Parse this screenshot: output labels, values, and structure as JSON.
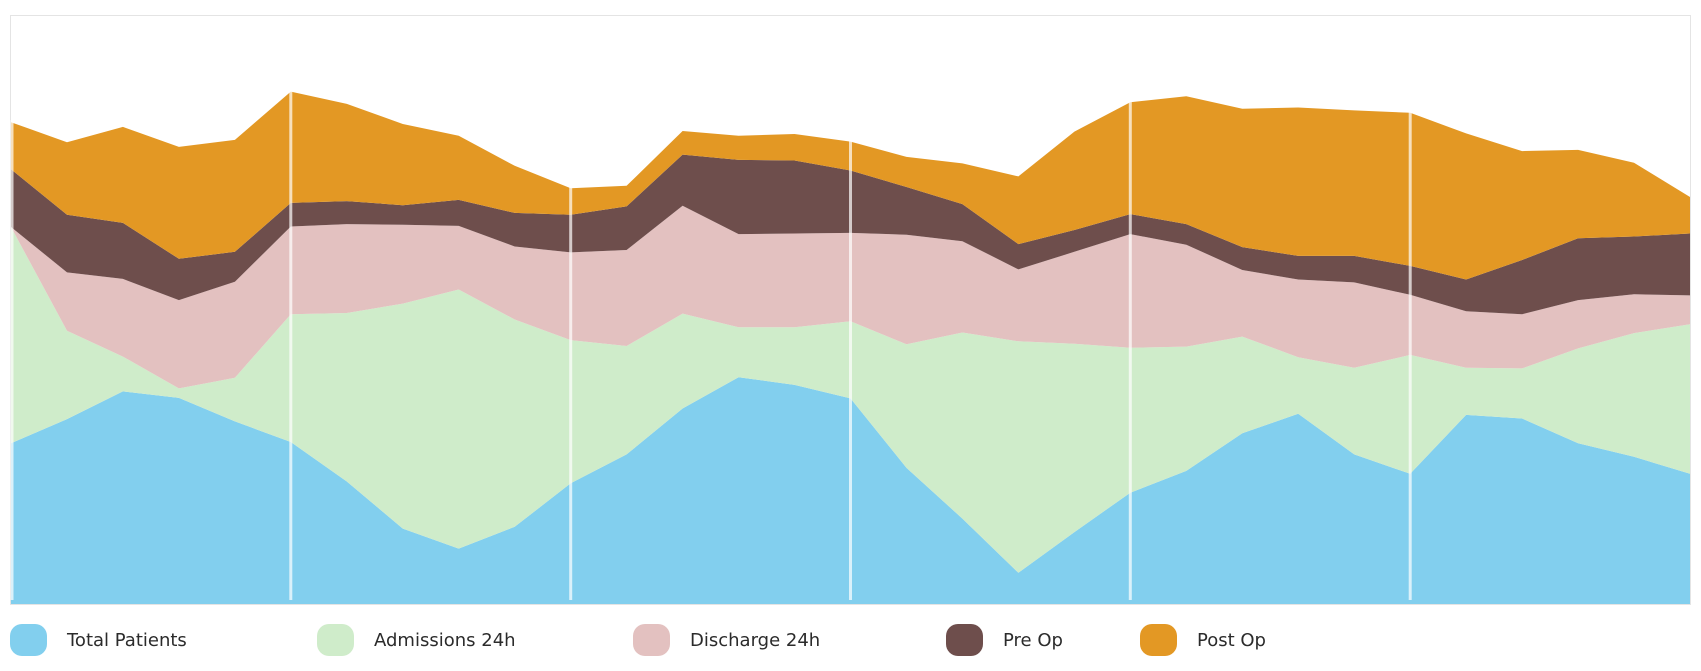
{
  "chart_data": {
    "type": "area",
    "stacked": true,
    "x": [
      0,
      1,
      2,
      3,
      4,
      5,
      6,
      7,
      8,
      9,
      10,
      11,
      12,
      13,
      14,
      15,
      16,
      17,
      18,
      19,
      20,
      21,
      22,
      23,
      24,
      25,
      26,
      27,
      28,
      29,
      30
    ],
    "ylim": [
      0,
      100
    ],
    "grid": "vertical",
    "legend": "bottom",
    "series": [
      {
        "name": "Total Patients",
        "color": "#82cfee",
        "values": [
          27.3,
          31.4,
          36.1,
          35.0,
          31.0,
          27.5,
          20.8,
          12.8,
          9.4,
          13.1,
          20.5,
          25.4,
          33.2,
          38.5,
          37.2,
          34.9,
          23.1,
          14.5,
          5.3,
          12.2,
          18.9,
          22.6,
          29.0,
          32.3,
          25.4,
          22.1,
          32.1,
          31.5,
          27.3,
          25.0,
          22.1
        ]
      },
      {
        "name": "Admissions 24h",
        "color": "#cfecca",
        "values": [
          36.7,
          15.0,
          5.9,
          1.6,
          7.4,
          21.7,
          28.6,
          38.2,
          44.0,
          35.2,
          24.3,
          18.4,
          16.1,
          8.5,
          9.8,
          13.1,
          21.0,
          31.6,
          39.3,
          32.0,
          24.6,
          21.1,
          16.4,
          9.6,
          14.7,
          20.2,
          8.0,
          8.5,
          16.1,
          21.0,
          25.4
        ]
      },
      {
        "name": "Discharge 24h",
        "color": "#e3c1c0",
        "values": [
          0,
          9.9,
          13.2,
          15.0,
          16.3,
          14.9,
          15.1,
          13.4,
          10.8,
          12.4,
          14.9,
          16.3,
          18.3,
          15.8,
          15.9,
          15.0,
          18.6,
          15.5,
          12.2,
          15.6,
          19.3,
          17.3,
          11.3,
          13.2,
          14.5,
          10.2,
          9.6,
          9.2,
          8.2,
          6.6,
          4.9
        ]
      },
      {
        "name": "Pre Op",
        "color": "#6e4e4c",
        "values": [
          9.8,
          9.8,
          9.5,
          7.0,
          5.1,
          4.0,
          3.9,
          3.3,
          4.4,
          5.7,
          6.4,
          7.4,
          8.7,
          12.6,
          12.4,
          10.6,
          8.1,
          6.3,
          4.3,
          3.7,
          3.4,
          3.5,
          3.9,
          4.0,
          4.5,
          4.9,
          5.4,
          9.2,
          10.5,
          9.8,
          10.5
        ]
      },
      {
        "name": "Post Op",
        "color": "#e39824",
        "values": [
          8.0,
          12.3,
          16.3,
          19.0,
          19.0,
          18.9,
          16.5,
          13.8,
          10.9,
          8.0,
          4.5,
          3.5,
          4.0,
          4.1,
          4.5,
          4.9,
          5.1,
          6.9,
          11.5,
          16.7,
          19.0,
          21.7,
          23.5,
          25.2,
          24.7,
          26.0,
          24.8,
          18.5,
          15.0,
          12.5,
          6.2
        ]
      }
    ]
  }
}
